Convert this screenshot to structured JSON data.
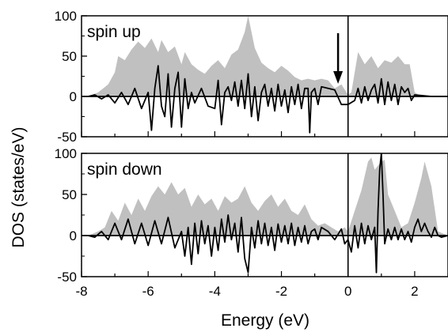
{
  "chart_data": {
    "type": "area",
    "xlabel": "Energy (eV)",
    "ylabel": "DOS (states/eV)",
    "xlim": [
      -8,
      3
    ],
    "x_ticks": [
      -8,
      -6,
      -4,
      -2,
      0,
      2
    ],
    "grid": false,
    "colors": {
      "filled": "#c0c0c0",
      "line": "#000000"
    },
    "panels": [
      {
        "panel_label": "spin up",
        "ylim": [
          -50,
          100
        ],
        "y_ticks": [
          -50,
          0,
          50,
          100
        ],
        "arrow_at_x": -0.3,
        "series": [
          {
            "style": "filled",
            "x": [
              -7.8,
              -7.5,
              -7.2,
              -7.0,
              -6.9,
              -6.7,
              -6.5,
              -6.3,
              -6.1,
              -5.9,
              -5.7,
              -5.6,
              -5.4,
              -5.2,
              -5.0,
              -4.9,
              -4.7,
              -4.5,
              -4.3,
              -4.1,
              -3.9,
              -3.7,
              -3.5,
              -3.3,
              -3.1,
              -3.0,
              -2.8,
              -2.6,
              -2.4,
              -2.2,
              -2.0,
              -1.8,
              -1.6,
              -1.4,
              -1.2,
              -1.0,
              -0.8,
              -0.6,
              -0.4,
              -0.2,
              0.0,
              0.1,
              0.3,
              0.5,
              0.7,
              0.9,
              1.1,
              1.3,
              1.5,
              1.7,
              1.85,
              2.0,
              2.2,
              2.5,
              3.0
            ],
            "y": [
              0,
              5,
              15,
              30,
              50,
              45,
              58,
              68,
              60,
              72,
              55,
              70,
              55,
              62,
              40,
              55,
              40,
              33,
              28,
              38,
              45,
              35,
              52,
              58,
              80,
              100,
              60,
              42,
              35,
              30,
              38,
              32,
              24,
              20,
              22,
              20,
              22,
              20,
              10,
              15,
              2,
              5,
              55,
              40,
              50,
              35,
              45,
              42,
              50,
              40,
              40,
              5,
              0,
              0,
              0
            ]
          },
          {
            "style": "line",
            "x": [
              -7.8,
              -7.6,
              -7.4,
              -7.2,
              -7.0,
              -6.8,
              -6.6,
              -6.4,
              -6.2,
              -6.0,
              -5.9,
              -5.8,
              -5.7,
              -5.6,
              -5.5,
              -5.4,
              -5.3,
              -5.2,
              -5.1,
              -5.0,
              -4.9,
              -4.8,
              -4.7,
              -4.6,
              -4.4,
              -4.2,
              -4.0,
              -3.9,
              -3.8,
              -3.7,
              -3.6,
              -3.5,
              -3.4,
              -3.3,
              -3.2,
              -3.1,
              -3.0,
              -2.9,
              -2.8,
              -2.7,
              -2.6,
              -2.5,
              -2.4,
              -2.3,
              -2.2,
              -2.1,
              -2.0,
              -1.9,
              -1.8,
              -1.7,
              -1.6,
              -1.5,
              -1.4,
              -1.3,
              -1.2,
              -1.15,
              -1.1,
              -1.0,
              -0.9,
              -0.8,
              -0.6,
              -0.4,
              -0.2,
              0.0,
              0.2,
              0.3,
              0.4,
              0.5,
              0.6,
              0.7,
              0.8,
              0.9,
              1.0,
              1.1,
              1.2,
              1.3,
              1.4,
              1.5,
              1.6,
              1.7,
              1.8,
              1.9,
              2.0,
              2.5,
              3.0
            ],
            "y": [
              0,
              2,
              -3,
              2,
              -8,
              5,
              -10,
              10,
              -15,
              5,
              -42,
              10,
              38,
              -12,
              -25,
              28,
              -38,
              10,
              30,
              -38,
              22,
              -15,
              5,
              -8,
              10,
              -12,
              -15,
              20,
              -35,
              5,
              12,
              -5,
              18,
              -12,
              20,
              -15,
              28,
              -25,
              12,
              -30,
              5,
              15,
              -12,
              10,
              -18,
              15,
              -12,
              8,
              -20,
              12,
              -10,
              15,
              -15,
              10,
              10,
              -45,
              5,
              10,
              -10,
              12,
              10,
              8,
              -10,
              -10,
              -5,
              10,
              -8,
              12,
              -5,
              8,
              15,
              -8,
              22,
              -10,
              18,
              -5,
              15,
              -10,
              12,
              5,
              10,
              -5,
              2,
              0,
              0
            ]
          }
        ]
      },
      {
        "panel_label": "spin down",
        "ylim": [
          -50,
          100
        ],
        "y_ticks": [
          -50,
          0,
          50,
          100
        ],
        "series": [
          {
            "style": "filled",
            "x": [
              -7.8,
              -7.5,
              -7.3,
              -7.1,
              -6.9,
              -6.7,
              -6.5,
              -6.3,
              -6.1,
              -5.9,
              -5.7,
              -5.5,
              -5.3,
              -5.1,
              -4.9,
              -4.7,
              -4.5,
              -4.3,
              -4.1,
              -3.9,
              -3.7,
              -3.5,
              -3.3,
              -3.1,
              -2.9,
              -2.7,
              -2.5,
              -2.3,
              -2.1,
              -1.9,
              -1.7,
              -1.5,
              -1.3,
              -1.1,
              -0.9,
              -0.7,
              -0.5,
              -0.3,
              -0.1,
              0.0,
              0.2,
              0.4,
              0.6,
              0.7,
              0.8,
              0.9,
              1.0,
              1.1,
              1.2,
              1.4,
              1.6,
              1.8,
              2.0,
              2.2,
              2.3,
              2.5,
              2.7,
              3.0
            ],
            "y": [
              0,
              5,
              10,
              30,
              18,
              40,
              25,
              45,
              30,
              48,
              60,
              50,
              65,
              50,
              58,
              35,
              50,
              38,
              45,
              30,
              48,
              40,
              45,
              60,
              40,
              30,
              42,
              50,
              35,
              45,
              30,
              25,
              38,
              20,
              12,
              15,
              10,
              5,
              10,
              5,
              30,
              55,
              90,
              95,
              80,
              85,
              90,
              92,
              50,
              30,
              10,
              15,
              40,
              70,
              90,
              60,
              5,
              0
            ]
          },
          {
            "style": "line",
            "x": [
              -7.8,
              -7.6,
              -7.4,
              -7.2,
              -7.0,
              -6.8,
              -6.6,
              -6.4,
              -6.2,
              -6.0,
              -5.8,
              -5.6,
              -5.4,
              -5.2,
              -5.0,
              -4.9,
              -4.8,
              -4.7,
              -4.6,
              -4.5,
              -4.4,
              -4.3,
              -4.2,
              -4.1,
              -4.0,
              -3.9,
              -3.8,
              -3.7,
              -3.6,
              -3.5,
              -3.4,
              -3.3,
              -3.2,
              -3.1,
              -3.0,
              -2.9,
              -2.8,
              -2.7,
              -2.6,
              -2.5,
              -2.4,
              -2.3,
              -2.2,
              -2.1,
              -2.0,
              -1.9,
              -1.8,
              -1.7,
              -1.6,
              -1.5,
              -1.4,
              -1.3,
              -1.2,
              -1.1,
              -1.0,
              -0.9,
              -0.8,
              -0.6,
              -0.4,
              -0.2,
              -0.1,
              0.0,
              0.1,
              0.2,
              0.3,
              0.4,
              0.5,
              0.6,
              0.7,
              0.8,
              0.85,
              0.9,
              0.95,
              1.0,
              1.05,
              1.1,
              1.2,
              1.3,
              1.4,
              1.5,
              1.6,
              1.7,
              1.8,
              1.9,
              2.0,
              2.1,
              2.2,
              2.3,
              2.4,
              2.5,
              2.6,
              2.7,
              2.8,
              3.0
            ],
            "y": [
              0,
              -2,
              5,
              -5,
              15,
              -5,
              20,
              -10,
              15,
              -12,
              18,
              -10,
              22,
              -15,
              5,
              -25,
              10,
              -35,
              15,
              -22,
              18,
              -10,
              12,
              -25,
              10,
              -18,
              20,
              -8,
              25,
              -5,
              15,
              -20,
              22,
              -28,
              -45,
              10,
              -15,
              18,
              -10,
              15,
              -12,
              10,
              -18,
              14,
              -8,
              12,
              -10,
              15,
              -12,
              10,
              -8,
              12,
              -10,
              5,
              8,
              -5,
              10,
              5,
              -5,
              8,
              -10,
              -5,
              -20,
              12,
              -15,
              15,
              -10,
              12,
              -5,
              10,
              -45,
              30,
              80,
              100,
              50,
              -10,
              8,
              -5,
              10,
              -5,
              8,
              -5,
              5,
              -8,
              10,
              20,
              5,
              15,
              5,
              -2,
              10,
              0,
              -2,
              0
            ]
          }
        ]
      }
    ]
  }
}
